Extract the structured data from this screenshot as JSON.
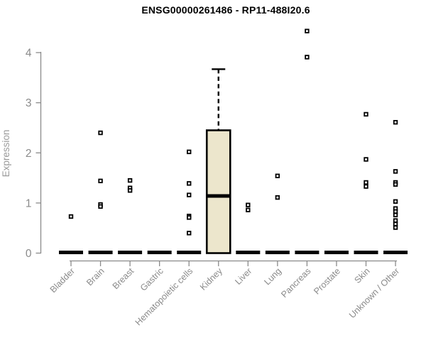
{
  "chart_data": {
    "type": "boxplot",
    "title": "ENSG00000261486 - RP11-488I20.6",
    "ylabel": "Expression",
    "xlabel": "",
    "yticks": [
      0,
      1,
      2,
      3,
      4
    ],
    "ylim": [
      0,
      4.6
    ],
    "grid": false,
    "legend": "none",
    "categories": [
      "Bladder",
      "Brain",
      "Breast",
      "Gastric",
      "Hematopoietic cells",
      "Kidney",
      "Liver",
      "Lung",
      "Pancreas",
      "Prostate",
      "Skin",
      "Unknown / Other"
    ],
    "groups": [
      {
        "category": "Bladder",
        "median": 0,
        "points": [
          0.73
        ]
      },
      {
        "category": "Brain",
        "median": 0,
        "points": [
          2.4,
          1.44,
          0.97,
          0.93
        ]
      },
      {
        "category": "Breast",
        "median": 0,
        "points": [
          1.45,
          1.3,
          1.25
        ]
      },
      {
        "category": "Gastric",
        "median": 0,
        "points": []
      },
      {
        "category": "Hematopoietic cells",
        "median": 0,
        "points": [
          2.02,
          1.39,
          1.16,
          0.74,
          0.71,
          0.4
        ]
      },
      {
        "category": "Kidney",
        "box": {
          "whisker_low": 0,
          "q1": 0,
          "median": 1.14,
          "q3": 2.45,
          "whisker_high": 3.67
        },
        "points": []
      },
      {
        "category": "Liver",
        "median": 0,
        "points": [
          0.96,
          0.86
        ]
      },
      {
        "category": "Lung",
        "median": 0,
        "points": [
          1.54,
          1.11
        ]
      },
      {
        "category": "Pancreas",
        "median": 0,
        "points": [
          4.43,
          3.91
        ]
      },
      {
        "category": "Prostate",
        "median": 0,
        "points": []
      },
      {
        "category": "Skin",
        "median": 0,
        "points": [
          2.77,
          1.87,
          1.41,
          1.33
        ]
      },
      {
        "category": "Unknown / Other",
        "median": 0,
        "points": [
          2.61,
          1.63,
          1.41,
          1.37,
          1.03,
          0.89,
          0.83,
          0.76,
          0.65,
          0.58,
          0.51
        ]
      }
    ],
    "colors": {
      "box_fill": "#ECE6CC",
      "box_border": "#000000",
      "median_line": "#000000",
      "zero_bar": "#000000",
      "point_border": "#000000",
      "point_fill": "#ffffff",
      "axis": "#8a8a8a",
      "tick_label": "#8a8a8a",
      "category_label": "#8a8a8a",
      "ylabel": "#9a9a9a",
      "title": "#000000",
      "background": "#ffffff"
    }
  }
}
